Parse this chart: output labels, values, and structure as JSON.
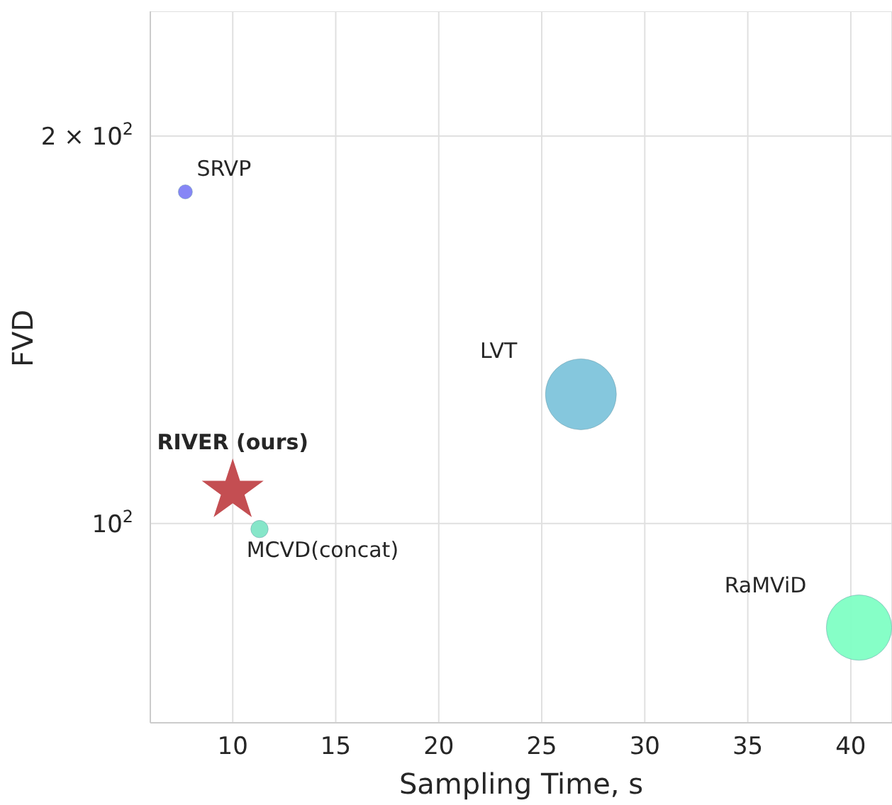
{
  "chart_data": {
    "type": "bubble",
    "xlabel": "Sampling Time, s",
    "ylabel": "FVD",
    "log": "y",
    "grid": true,
    "marker": "circle",
    "xlim": [
      6,
      42
    ],
    "xticks": [
      10,
      15,
      20,
      25,
      30,
      35,
      40
    ],
    "ylim": [
      70,
      250
    ],
    "yticks": [
      {
        "value": 100,
        "label": "10$^{2}$"
      },
      {
        "value": 200,
        "label": "2 × 10$^{2}$"
      }
    ],
    "series": [
      {
        "name": "SRVP",
        "color": "#7f7ff5",
        "x": [
          7.7
        ],
        "values": [
          181
        ],
        "sizes": [
          0.04
        ]
      },
      {
        "name": "LVT",
        "color": "#7ec4db",
        "x": [
          26.9
        ],
        "values": [
          126
        ],
        "sizes": [
          1
        ]
      },
      {
        "name": "RIVER (ours)",
        "color": "#c44e52",
        "marker": "star",
        "x": [
          10
        ],
        "values": [
          106
        ],
        "sizes": [
          0.3
        ]
      },
      {
        "name": "MCVD(concat)",
        "color": "#7fe5c6",
        "x": [
          11.3
        ],
        "values": [
          99
        ],
        "sizes": [
          0.06
        ]
      },
      {
        "name": "RaMViD",
        "color": "#7fffc4",
        "x": [
          40.4
        ],
        "values": [
          83
        ],
        "sizes": [
          0.85
        ]
      }
    ]
  }
}
